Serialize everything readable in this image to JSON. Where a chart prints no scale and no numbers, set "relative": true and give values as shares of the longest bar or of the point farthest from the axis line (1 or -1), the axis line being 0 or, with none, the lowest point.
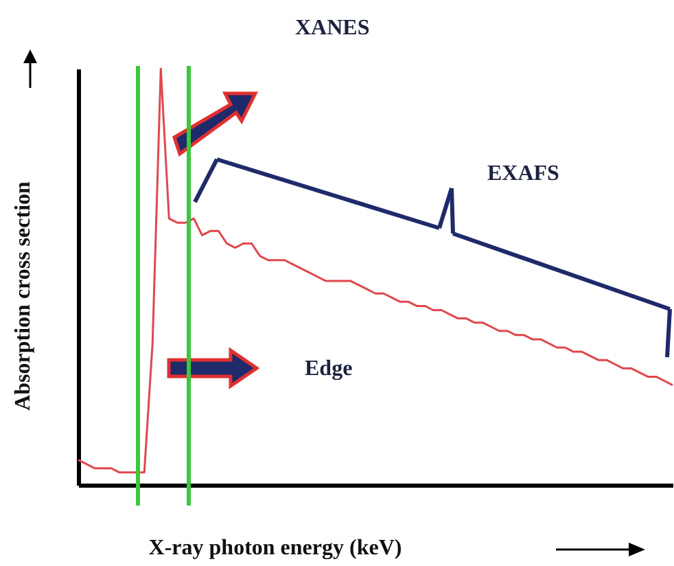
{
  "chart_data": {
    "type": "line",
    "relative": true,
    "xlabel": "X-ray photon energy  (keV)",
    "ylabel": "Absorption cross section",
    "categories": [
      null,
      null,
      null,
      null,
      null,
      null,
      null,
      null,
      null,
      null,
      null,
      null,
      null,
      null,
      null,
      null,
      null,
      null,
      null,
      null,
      null,
      null,
      null,
      null,
      null,
      null,
      null,
      null,
      null,
      null,
      null,
      null,
      null,
      null,
      null,
      null,
      null,
      null,
      null,
      null,
      null,
      null,
      null,
      null,
      null,
      null,
      null,
      null,
      null,
      null,
      null,
      null,
      null,
      null,
      null,
      null,
      null,
      null,
      null,
      null,
      null,
      null,
      null,
      null,
      null,
      null,
      null,
      null,
      null,
      null,
      null,
      null,
      null
    ],
    "series": [
      {
        "color": "#e0474c",
        "values": [
          0.06,
          0.05,
          0.04,
          0.04,
          0.04,
          0.03,
          0.03,
          0.03,
          0.03,
          0.34,
          1.0,
          0.64,
          0.63,
          0.63,
          0.64,
          0.6,
          0.61,
          0.61,
          0.58,
          0.57,
          0.58,
          0.58,
          0.55,
          0.54,
          0.54,
          0.54,
          0.53,
          0.52,
          0.51,
          0.5,
          0.49,
          0.49,
          0.49,
          0.49,
          0.48,
          0.47,
          0.46,
          0.46,
          0.45,
          0.44,
          0.44,
          0.43,
          0.43,
          0.42,
          0.42,
          0.41,
          0.4,
          0.4,
          0.39,
          0.39,
          0.38,
          0.37,
          0.37,
          0.36,
          0.36,
          0.35,
          0.35,
          0.34,
          0.33,
          0.33,
          0.32,
          0.32,
          0.31,
          0.3,
          0.3,
          0.29,
          0.28,
          0.28,
          0.27,
          0.26,
          0.26,
          0.25,
          0.24
        ]
      }
    ],
    "annotations": [
      "XANES",
      "EXAFS",
      "Edge"
    ],
    "grid": false,
    "marker": "none",
    "line_style": "solid"
  }
}
